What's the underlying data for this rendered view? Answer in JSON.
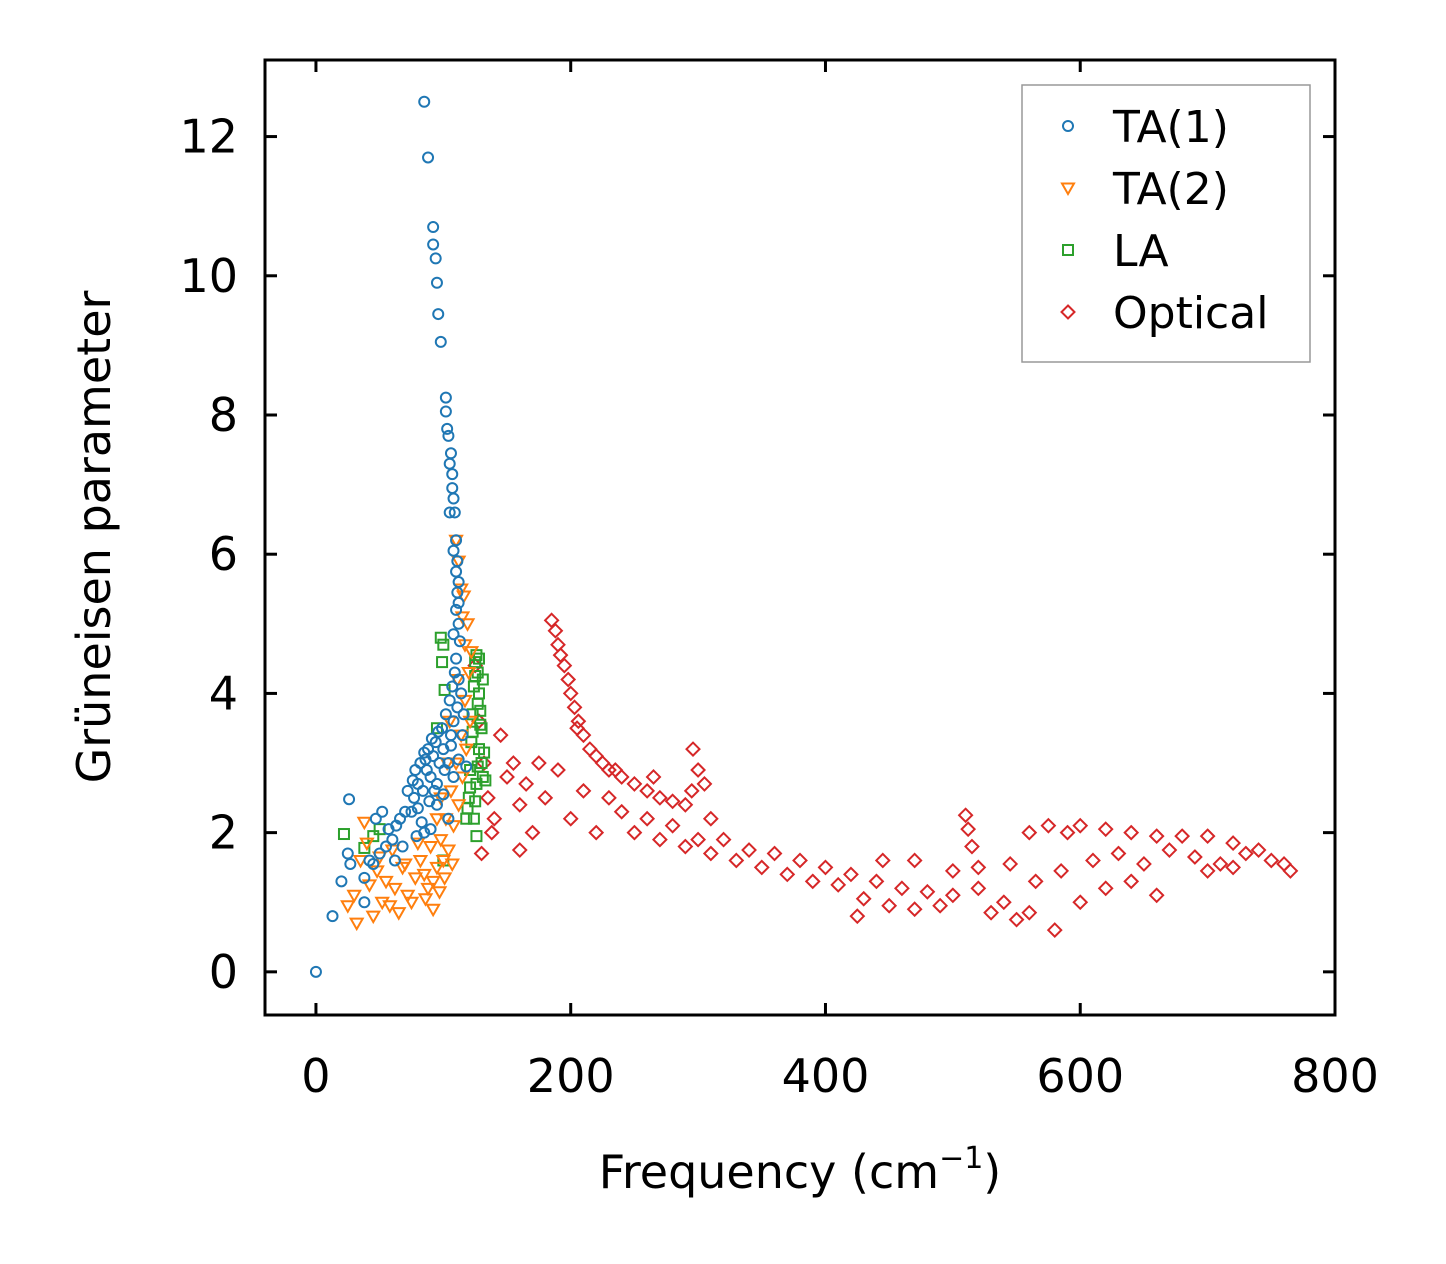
{
  "chart_data": {
    "type": "scatter",
    "title": "",
    "xlabel": "Frequency (cm",
    "xlabel_sup": "−1",
    "xlabel_close": ")",
    "ylabel": "Grüneisen parameter",
    "xlim": [
      -40,
      800
    ],
    "ylim": [
      -0.62,
      13.1
    ],
    "xticks": [
      0,
      200,
      400,
      600,
      800
    ],
    "yticks": [
      0,
      2,
      4,
      6,
      8,
      10,
      12
    ],
    "legend_position": "top-right",
    "grid": false,
    "series": [
      {
        "name": "TA(1)",
        "label": "TA(1)",
        "marker": "circle",
        "color": "#1f77b4",
        "points": [
          [
            0,
            0
          ],
          [
            13,
            0.8
          ],
          [
            20,
            1.3
          ],
          [
            25,
            1.7
          ],
          [
            27,
            1.55
          ],
          [
            26,
            2.48
          ],
          [
            38,
            1.35
          ],
          [
            38,
            1.0
          ],
          [
            42,
            1.6
          ],
          [
            45,
            1.55
          ],
          [
            47,
            2.2
          ],
          [
            50,
            1.7
          ],
          [
            52,
            2.3
          ],
          [
            55,
            1.8
          ],
          [
            57,
            2.05
          ],
          [
            60,
            1.9
          ],
          [
            62,
            1.6
          ],
          [
            63,
            2.1
          ],
          [
            66,
            2.2
          ],
          [
            68,
            1.8
          ],
          [
            70,
            2.3
          ],
          [
            72,
            2.6
          ],
          [
            75,
            2.3
          ],
          [
            77,
            2.5
          ],
          [
            78,
            2.9
          ],
          [
            80,
            2.7
          ],
          [
            82,
            3.0
          ],
          [
            84,
            2.6
          ],
          [
            85,
            3.15
          ],
          [
            87,
            2.9
          ],
          [
            88,
            3.2
          ],
          [
            90,
            2.8
          ],
          [
            92,
            3.1
          ],
          [
            94,
            3.3
          ],
          [
            95,
            2.7
          ],
          [
            97,
            3.0
          ],
          [
            99,
            3.5
          ],
          [
            100,
            3.2
          ],
          [
            102,
            3.7
          ],
          [
            104,
            3.0
          ],
          [
            105,
            3.9
          ],
          [
            106,
            3.4
          ],
          [
            107,
            4.1
          ],
          [
            108,
            3.6
          ],
          [
            109,
            4.3
          ],
          [
            110,
            4.5
          ],
          [
            111,
            3.8
          ],
          [
            112,
            4.2
          ],
          [
            114,
            4.0
          ],
          [
            116,
            3.7
          ],
          [
            85,
            12.5
          ],
          [
            88,
            11.7
          ],
          [
            92,
            10.7
          ],
          [
            92,
            10.45
          ],
          [
            94,
            10.25
          ],
          [
            95,
            9.9
          ],
          [
            96,
            9.45
          ],
          [
            98,
            9.05
          ],
          [
            102,
            8.25
          ],
          [
            102,
            8.05
          ],
          [
            103,
            7.8
          ],
          [
            104,
            7.7
          ],
          [
            106,
            7.45
          ],
          [
            105,
            7.3
          ],
          [
            107,
            7.15
          ],
          [
            107,
            6.95
          ],
          [
            108,
            6.8
          ],
          [
            109,
            6.6
          ],
          [
            110,
            6.2
          ],
          [
            111,
            5.9
          ],
          [
            112,
            5.6
          ],
          [
            110,
            5.2
          ],
          [
            112,
            5.0
          ],
          [
            113,
            4.75
          ],
          [
            105,
            6.6
          ],
          [
            108,
            6.05
          ],
          [
            110,
            5.75
          ],
          [
            111,
            5.45
          ],
          [
            112,
            5.3
          ],
          [
            108,
            4.85
          ],
          [
            95,
            2.4
          ],
          [
            90,
            2.05
          ],
          [
            85,
            2.0
          ],
          [
            80,
            2.35
          ],
          [
            100,
            2.55
          ],
          [
            104,
            2.2
          ],
          [
            108,
            2.8
          ],
          [
            112,
            3.05
          ],
          [
            115,
            3.4
          ],
          [
            118,
            2.95
          ],
          [
            93,
            2.6
          ],
          [
            89,
            2.45
          ],
          [
            83,
            2.15
          ],
          [
            79,
            1.95
          ],
          [
            101,
            2.9
          ],
          [
            106,
            3.25
          ],
          [
            96,
            3.45
          ],
          [
            91,
            3.35
          ],
          [
            86,
            3.05
          ],
          [
            76,
            2.75
          ]
        ]
      },
      {
        "name": "TA(2)",
        "label": "TA(2)",
        "marker": "triangle-down",
        "color": "#ff7f0e",
        "points": [
          [
            25,
            0.95
          ],
          [
            30,
            1.1
          ],
          [
            32,
            0.7
          ],
          [
            35,
            1.6
          ],
          [
            38,
            2.15
          ],
          [
            42,
            1.25
          ],
          [
            45,
            0.8
          ],
          [
            48,
            1.45
          ],
          [
            52,
            1.0
          ],
          [
            55,
            1.3
          ],
          [
            58,
            0.95
          ],
          [
            62,
            1.2
          ],
          [
            65,
            0.85
          ],
          [
            68,
            1.5
          ],
          [
            72,
            1.1
          ],
          [
            75,
            1.0
          ],
          [
            78,
            1.35
          ],
          [
            82,
            1.6
          ],
          [
            85,
            1.4
          ],
          [
            88,
            1.2
          ],
          [
            90,
            1.8
          ],
          [
            92,
            1.3
          ],
          [
            95,
            1.5
          ],
          [
            98,
            1.9
          ],
          [
            100,
            1.6
          ],
          [
            102,
            2.2
          ],
          [
            104,
            1.75
          ],
          [
            106,
            2.6
          ],
          [
            108,
            2.1
          ],
          [
            110,
            3.0
          ],
          [
            112,
            2.4
          ],
          [
            114,
            3.4
          ],
          [
            115,
            2.8
          ],
          [
            117,
            3.9
          ],
          [
            118,
            3.2
          ],
          [
            120,
            4.3
          ],
          [
            121,
            3.6
          ],
          [
            122,
            4.6
          ],
          [
            119,
            5.0
          ],
          [
            116,
            5.4
          ],
          [
            110,
            6.2
          ],
          [
            112,
            5.9
          ],
          [
            114,
            5.5
          ],
          [
            115,
            5.1
          ],
          [
            117,
            4.7
          ],
          [
            111,
            4.2
          ],
          [
            105,
            3.6
          ],
          [
            103,
            3.0
          ],
          [
            98,
            2.5
          ],
          [
            95,
            2.2
          ],
          [
            80,
            1.85
          ],
          [
            70,
            1.55
          ],
          [
            60,
            1.75
          ],
          [
            50,
            1.65
          ],
          [
            40,
            1.85
          ],
          [
            86,
            1.05
          ],
          [
            92,
            0.9
          ],
          [
            97,
            1.15
          ],
          [
            101,
            1.35
          ],
          [
            107,
            1.55
          ]
        ]
      },
      {
        "name": "LA",
        "label": "LA",
        "marker": "square",
        "color": "#2ca02c",
        "points": [
          [
            22,
            1.98
          ],
          [
            38,
            1.78
          ],
          [
            45,
            1.95
          ],
          [
            50,
            2.05
          ],
          [
            95,
            3.5
          ],
          [
            98,
            4.8
          ],
          [
            100,
            4.7
          ],
          [
            99,
            4.45
          ],
          [
            101,
            4.05
          ],
          [
            100,
            1.6
          ],
          [
            118,
            2.2
          ],
          [
            120,
            2.5
          ],
          [
            121,
            2.9
          ],
          [
            122,
            3.3
          ],
          [
            123,
            3.7
          ],
          [
            124,
            4.1
          ],
          [
            125,
            4.45
          ],
          [
            126,
            4.55
          ],
          [
            127,
            4.3
          ],
          [
            128,
            4.0
          ],
          [
            129,
            3.75
          ],
          [
            130,
            3.5
          ],
          [
            128,
            3.2
          ],
          [
            127,
            2.95
          ],
          [
            126,
            2.7
          ],
          [
            125,
            2.45
          ],
          [
            124,
            2.2
          ],
          [
            126,
            1.95
          ],
          [
            130,
            3.0
          ],
          [
            131,
            2.8
          ],
          [
            133,
            2.75
          ],
          [
            132,
            3.15
          ],
          [
            129,
            3.55
          ],
          [
            127,
            3.85
          ],
          [
            125,
            4.25
          ],
          [
            123,
            3.45
          ],
          [
            121,
            2.65
          ],
          [
            119,
            2.35
          ],
          [
            131,
            4.2
          ],
          [
            128,
            4.5
          ]
        ]
      },
      {
        "name": "Optical",
        "label": "Optical",
        "marker": "diamond",
        "color": "#d62728",
        "points": [
          [
            185,
            5.05
          ],
          [
            188,
            4.9
          ],
          [
            190,
            4.7
          ],
          [
            192,
            4.55
          ],
          [
            195,
            4.4
          ],
          [
            198,
            4.2
          ],
          [
            200,
            4.0
          ],
          [
            203,
            3.8
          ],
          [
            206,
            3.6
          ],
          [
            210,
            3.4
          ],
          [
            215,
            3.2
          ],
          [
            220,
            3.1
          ],
          [
            225,
            3.0
          ],
          [
            230,
            2.9
          ],
          [
            240,
            2.8
          ],
          [
            250,
            2.7
          ],
          [
            260,
            2.6
          ],
          [
            270,
            2.5
          ],
          [
            280,
            2.45
          ],
          [
            290,
            2.4
          ],
          [
            296,
            3.2
          ],
          [
            300,
            2.9
          ],
          [
            305,
            2.7
          ],
          [
            310,
            2.2
          ],
          [
            320,
            1.9
          ],
          [
            340,
            1.75
          ],
          [
            360,
            1.7
          ],
          [
            380,
            1.6
          ],
          [
            400,
            1.5
          ],
          [
            420,
            1.4
          ],
          [
            440,
            1.3
          ],
          [
            460,
            1.2
          ],
          [
            480,
            1.15
          ],
          [
            500,
            1.1
          ],
          [
            510,
            2.25
          ],
          [
            512,
            2.05
          ],
          [
            515,
            1.8
          ],
          [
            520,
            1.2
          ],
          [
            540,
            1.0
          ],
          [
            560,
            0.85
          ],
          [
            580,
            0.6
          ],
          [
            560,
            2.0
          ],
          [
            575,
            2.1
          ],
          [
            590,
            2.0
          ],
          [
            600,
            2.1
          ],
          [
            620,
            2.05
          ],
          [
            640,
            2.0
          ],
          [
            660,
            1.95
          ],
          [
            680,
            1.95
          ],
          [
            700,
            1.95
          ],
          [
            720,
            1.85
          ],
          [
            740,
            1.75
          ],
          [
            760,
            1.55
          ],
          [
            765,
            1.45
          ],
          [
            700,
            1.45
          ],
          [
            720,
            1.5
          ],
          [
            660,
            1.1
          ],
          [
            640,
            1.3
          ],
          [
            620,
            1.2
          ],
          [
            600,
            1.0
          ],
          [
            130,
            1.7
          ],
          [
            140,
            2.2
          ],
          [
            150,
            2.8
          ],
          [
            160,
            2.4
          ],
          [
            170,
            2.0
          ],
          [
            180,
            2.5
          ],
          [
            190,
            2.9
          ],
          [
            200,
            2.2
          ],
          [
            210,
            2.6
          ],
          [
            220,
            2.0
          ],
          [
            230,
            2.5
          ],
          [
            240,
            2.3
          ],
          [
            250,
            2.0
          ],
          [
            260,
            2.2
          ],
          [
            270,
            1.9
          ],
          [
            280,
            2.1
          ],
          [
            290,
            1.8
          ],
          [
            300,
            1.9
          ],
          [
            310,
            1.7
          ],
          [
            330,
            1.6
          ],
          [
            350,
            1.5
          ],
          [
            370,
            1.4
          ],
          [
            390,
            1.3
          ],
          [
            410,
            1.25
          ],
          [
            430,
            1.05
          ],
          [
            450,
            0.95
          ],
          [
            470,
            0.9
          ],
          [
            490,
            0.95
          ],
          [
            530,
            0.85
          ],
          [
            550,
            0.75
          ],
          [
            145,
            3.4
          ],
          [
            155,
            3.0
          ],
          [
            165,
            2.7
          ],
          [
            175,
            3.0
          ],
          [
            205,
            3.5
          ],
          [
            235,
            2.9
          ],
          [
            265,
            2.8
          ],
          [
            295,
            2.6
          ],
          [
            425,
            0.8
          ],
          [
            445,
            1.6
          ],
          [
            470,
            1.6
          ],
          [
            500,
            1.45
          ],
          [
            520,
            1.5
          ],
          [
            545,
            1.55
          ],
          [
            565,
            1.3
          ],
          [
            585,
            1.45
          ],
          [
            610,
            1.6
          ],
          [
            630,
            1.7
          ],
          [
            650,
            1.55
          ],
          [
            670,
            1.75
          ],
          [
            690,
            1.65
          ],
          [
            710,
            1.55
          ],
          [
            730,
            1.7
          ],
          [
            750,
            1.6
          ],
          [
            135,
            2.5
          ],
          [
            125,
            4.4
          ],
          [
            128,
            3.6
          ],
          [
            132,
            3.0
          ],
          [
            138,
            2.0
          ],
          [
            160,
            1.75
          ]
        ]
      }
    ]
  }
}
